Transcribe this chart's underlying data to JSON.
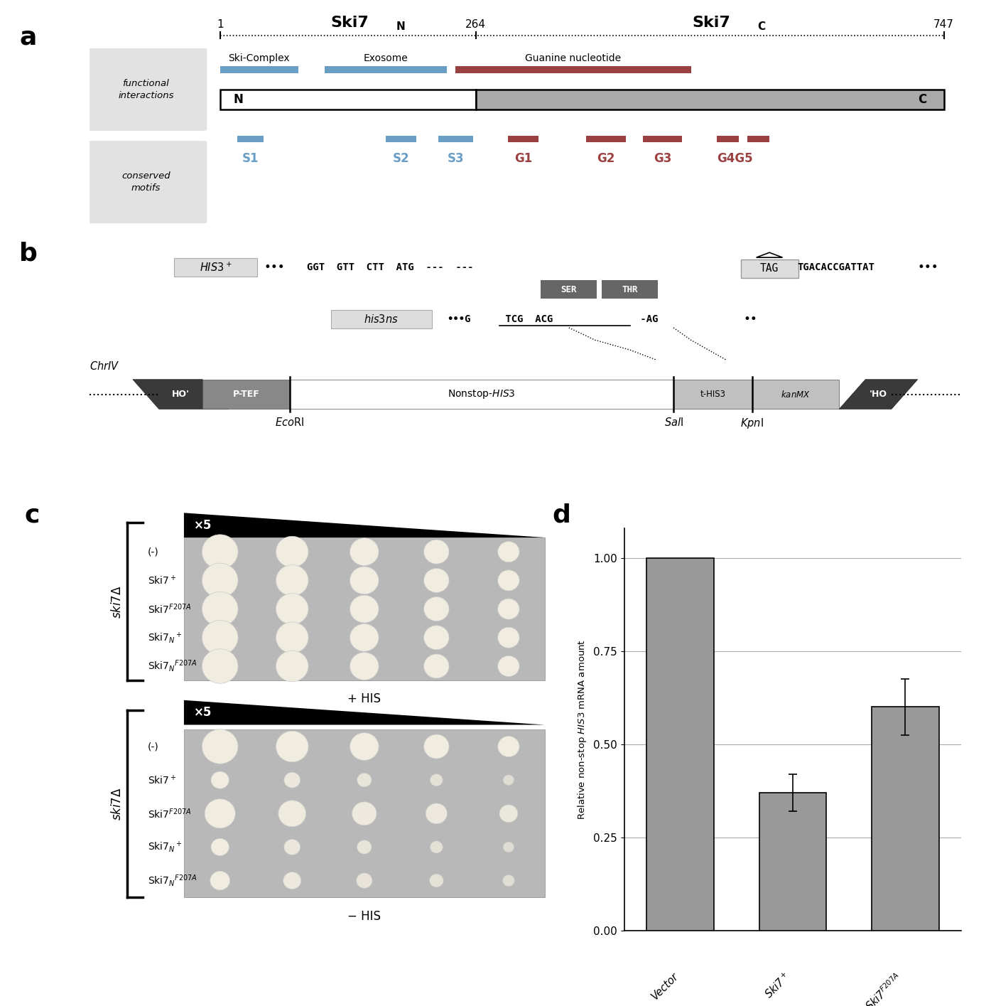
{
  "panel_a": {
    "title_label": "a",
    "blue_color": "#6A9EC5",
    "red_color": "#9B4040",
    "bar_color_N": "#FFFFFF",
    "bar_color_C": "#AAAAAA"
  },
  "panel_b": {
    "title_label": "b"
  },
  "panel_c": {
    "title_label": "c"
  },
  "panel_d": {
    "title_label": "d",
    "bar_values": [
      1.0,
      0.37,
      0.6
    ],
    "bar_errors": [
      0.0,
      0.05,
      0.075
    ],
    "bar_color": "#999999",
    "yticks": [
      0,
      0.25,
      0.5,
      0.75,
      1
    ],
    "ylim": [
      0,
      1.08
    ],
    "grid_color": "#AAAAAA"
  },
  "figure_bg": "#FFFFFF",
  "panel_label_fontsize": 26
}
